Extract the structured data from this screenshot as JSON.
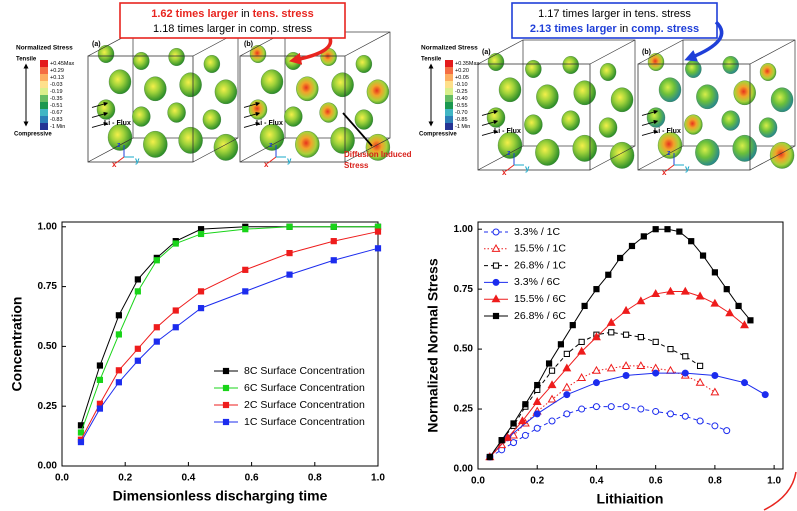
{
  "panels": [
    {
      "colorbar_title": "Normalized Stress",
      "tensile": "Tensile",
      "compressive": "Compressive",
      "colorbar_labels": [
        "+0.45Max",
        "+0.29",
        "+0.13",
        "-0.03",
        "-0.19",
        "-0.35",
        "-0.51",
        "-0.67",
        "-0.83",
        "-1 Min"
      ],
      "callout_color": "#e8251f",
      "callout": [
        [
          {
            "text": "1.62 times larger",
            "color": "#e8251f",
            "bold": true
          },
          {
            "text": "in"
          },
          {
            "text": "tens. stress",
            "color": "#e8251f",
            "bold": true
          }
        ],
        [
          {
            "text": "1.18 times larger in comp. stress"
          }
        ]
      ],
      "cubes": [
        {
          "label": "(a)",
          "flux": "Li - Flux"
        },
        {
          "label": "(b)",
          "flux": "Li - Flux"
        }
      ],
      "axes": [
        "x",
        "y",
        "z"
      ],
      "annotation": [
        "Diffusion Induced",
        "Stress"
      ]
    },
    {
      "colorbar_title": "Normalized Stress",
      "tensile": "Tensile",
      "compressive": "Compressive",
      "colorbar_labels": [
        "+0.35Max",
        "+0.20",
        "+0.05",
        "-0.10",
        "-0.25",
        "-0.40",
        "-0.55",
        "-0.70",
        "-0.85",
        "-1 Min"
      ],
      "callout_color": "#1f3fd8",
      "callout": [
        [
          {
            "text": "1.17 times larger in tens. stress"
          }
        ],
        [
          {
            "text": "2.13 times larger",
            "color": "#1f3fd8",
            "bold": true
          },
          {
            "text": "in"
          },
          {
            "text": "comp. stress",
            "color": "#1f3fd8",
            "bold": true
          }
        ]
      ],
      "cubes": [
        {
          "label": "(a)",
          "flux": "Li - Flux"
        },
        {
          "label": "(b)",
          "flux": "Li - Flux"
        }
      ],
      "axes": [
        "x",
        "y",
        "z"
      ]
    }
  ],
  "chart_data": [
    {
      "type": "line",
      "x_label": "Dimensionless discharging time",
      "y_label": "Concentration",
      "x": [
        0.06,
        0.12,
        0.18,
        0.24,
        0.3,
        0.36,
        0.44,
        0.58,
        0.72,
        0.86,
        1.0
      ],
      "series": [
        {
          "name": "8C Surface Concentration",
          "color": "#000000",
          "marker": "square",
          "filled": true,
          "values": [
            0.17,
            0.42,
            0.63,
            0.78,
            0.87,
            0.94,
            0.99,
            1.0,
            1.0,
            1.0,
            1.0
          ]
        },
        {
          "name": "6C Surface Concentration",
          "color": "#19d419",
          "marker": "square",
          "filled": true,
          "values": [
            0.14,
            0.36,
            0.55,
            0.73,
            0.86,
            0.93,
            0.97,
            0.99,
            1.0,
            1.0,
            1.0
          ]
        },
        {
          "name": "2C Surface Concentration",
          "color": "#ee1c1c",
          "marker": "square",
          "filled": true,
          "values": [
            0.11,
            0.26,
            0.4,
            0.49,
            0.58,
            0.65,
            0.73,
            0.82,
            0.89,
            0.94,
            0.98
          ]
        },
        {
          "name": "1C Surface Concentration",
          "color": "#1c2cee",
          "marker": "square",
          "filled": true,
          "values": [
            0.1,
            0.24,
            0.35,
            0.44,
            0.52,
            0.58,
            0.66,
            0.73,
            0.8,
            0.86,
            0.91
          ]
        }
      ],
      "xlim": [
        0,
        1.0
      ],
      "ylim": [
        0,
        1.02
      ],
      "xticks": [
        {
          "value": 0,
          "label": "0.0"
        },
        0.2,
        0.4,
        0.6,
        0.8,
        {
          "value": 1,
          "label": "1.0"
        }
      ],
      "yticks": [
        {
          "value": 0,
          "label": "0.00"
        },
        0.25,
        {
          "value": 0.5,
          "label": "0.50"
        },
        0.75,
        {
          "value": 1,
          "label": "1.00"
        }
      ],
      "legend": "lower right"
    },
    {
      "type": "line",
      "x_label": "Lithiaition",
      "y_label": "Normalized Normal Stress",
      "series": [
        {
          "name": "3.3% / 1C",
          "color": "#1c2cee",
          "marker": "circle",
          "filled": false,
          "dash": "dashed",
          "x": [
            0.04,
            0.08,
            0.12,
            0.16,
            0.2,
            0.25,
            0.3,
            0.35,
            0.4,
            0.45,
            0.5,
            0.55,
            0.6,
            0.65,
            0.7,
            0.75,
            0.8,
            0.84
          ],
          "values": [
            0.05,
            0.08,
            0.11,
            0.14,
            0.17,
            0.2,
            0.23,
            0.25,
            0.26,
            0.26,
            0.26,
            0.25,
            0.24,
            0.23,
            0.22,
            0.2,
            0.18,
            0.16
          ]
        },
        {
          "name": "15.5% / 1C",
          "color": "#ee1c1c",
          "marker": "triangle",
          "filled": false,
          "dash": "dotted",
          "x": [
            0.04,
            0.08,
            0.12,
            0.16,
            0.2,
            0.25,
            0.3,
            0.35,
            0.4,
            0.45,
            0.5,
            0.55,
            0.6,
            0.65,
            0.7,
            0.75,
            0.8
          ],
          "values": [
            0.05,
            0.1,
            0.14,
            0.19,
            0.24,
            0.29,
            0.34,
            0.38,
            0.41,
            0.42,
            0.43,
            0.43,
            0.42,
            0.41,
            0.39,
            0.36,
            0.32
          ]
        },
        {
          "name": "26.8% / 1C",
          "color": "#000000",
          "marker": "square",
          "filled": false,
          "dash": "dashed",
          "x": [
            0.04,
            0.08,
            0.12,
            0.16,
            0.2,
            0.25,
            0.3,
            0.35,
            0.4,
            0.45,
            0.5,
            0.55,
            0.6,
            0.65,
            0.7,
            0.75
          ],
          "values": [
            0.05,
            0.12,
            0.18,
            0.26,
            0.33,
            0.41,
            0.48,
            0.53,
            0.56,
            0.57,
            0.56,
            0.55,
            0.53,
            0.5,
            0.47,
            0.43
          ]
        },
        {
          "name": "3.3% / 6C",
          "color": "#1c2cee",
          "marker": "circle",
          "filled": true,
          "x": [
            0.04,
            0.1,
            0.2,
            0.3,
            0.4,
            0.5,
            0.6,
            0.7,
            0.8,
            0.9,
            0.97
          ],
          "values": [
            0.05,
            0.13,
            0.23,
            0.31,
            0.36,
            0.39,
            0.4,
            0.4,
            0.39,
            0.36,
            0.31
          ]
        },
        {
          "name": "15.5% / 6C",
          "color": "#ee1c1c",
          "marker": "triangle",
          "filled": true,
          "x": [
            0.04,
            0.1,
            0.15,
            0.2,
            0.25,
            0.3,
            0.35,
            0.4,
            0.45,
            0.5,
            0.55,
            0.6,
            0.65,
            0.7,
            0.75,
            0.8,
            0.85,
            0.9
          ],
          "values": [
            0.05,
            0.13,
            0.2,
            0.28,
            0.35,
            0.42,
            0.49,
            0.55,
            0.61,
            0.66,
            0.7,
            0.73,
            0.74,
            0.74,
            0.72,
            0.69,
            0.65,
            0.6
          ]
        },
        {
          "name": "26.8% / 6C",
          "color": "#000000",
          "marker": "square",
          "filled": true,
          "x": [
            0.04,
            0.08,
            0.12,
            0.16,
            0.2,
            0.24,
            0.28,
            0.32,
            0.36,
            0.4,
            0.44,
            0.48,
            0.52,
            0.56,
            0.6,
            0.64,
            0.68,
            0.72,
            0.76,
            0.8,
            0.84,
            0.88,
            0.92
          ],
          "values": [
            0.05,
            0.12,
            0.19,
            0.27,
            0.35,
            0.44,
            0.52,
            0.6,
            0.68,
            0.75,
            0.81,
            0.88,
            0.93,
            0.97,
            1.0,
            1.0,
            0.99,
            0.95,
            0.89,
            0.82,
            0.75,
            0.68,
            0.62
          ]
        }
      ],
      "xlim": [
        0,
        1.03
      ],
      "ylim": [
        0,
        1.03
      ],
      "xticks": [
        {
          "value": 0,
          "label": "0.0"
        },
        0.2,
        0.4,
        0.6,
        0.8,
        {
          "value": 1,
          "label": "1.0"
        }
      ],
      "yticks": [
        {
          "value": 0,
          "label": "0.00"
        },
        0.25,
        {
          "value": 0.5,
          "label": "0.50"
        },
        0.75,
        {
          "value": 1,
          "label": "1.00"
        }
      ],
      "legend": "upper left"
    }
  ]
}
